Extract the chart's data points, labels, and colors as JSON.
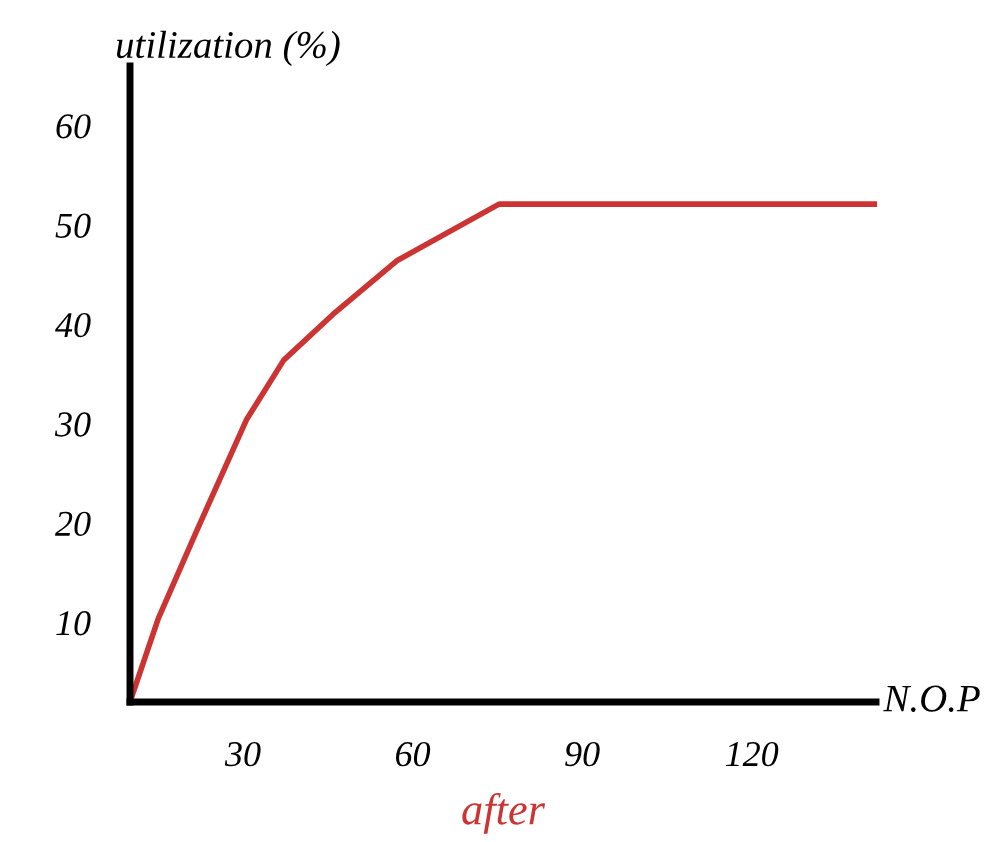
{
  "chart_data": {
    "type": "line",
    "x": [
      10,
      15,
      21.7,
      30.6,
      37.2,
      45.9,
      57.2,
      75.3,
      141.7
    ],
    "series": [
      {
        "color": "#cc3333",
        "values": [
          2,
          10.4,
          19.1,
          30.4,
          36.4,
          41,
          46.4,
          52.1,
          52.1
        ]
      }
    ],
    "xlim": [
      10,
      142
    ],
    "ylim": [
      2,
      66
    ],
    "xticks": [
      30,
      60,
      90,
      120
    ],
    "yticks": [
      10,
      20,
      30,
      40,
      50,
      60
    ],
    "xlabel": "N.O.P",
    "ylabel": "utilization (%)",
    "annotations": [
      "after"
    ],
    "grid": false,
    "legend": false
  }
}
